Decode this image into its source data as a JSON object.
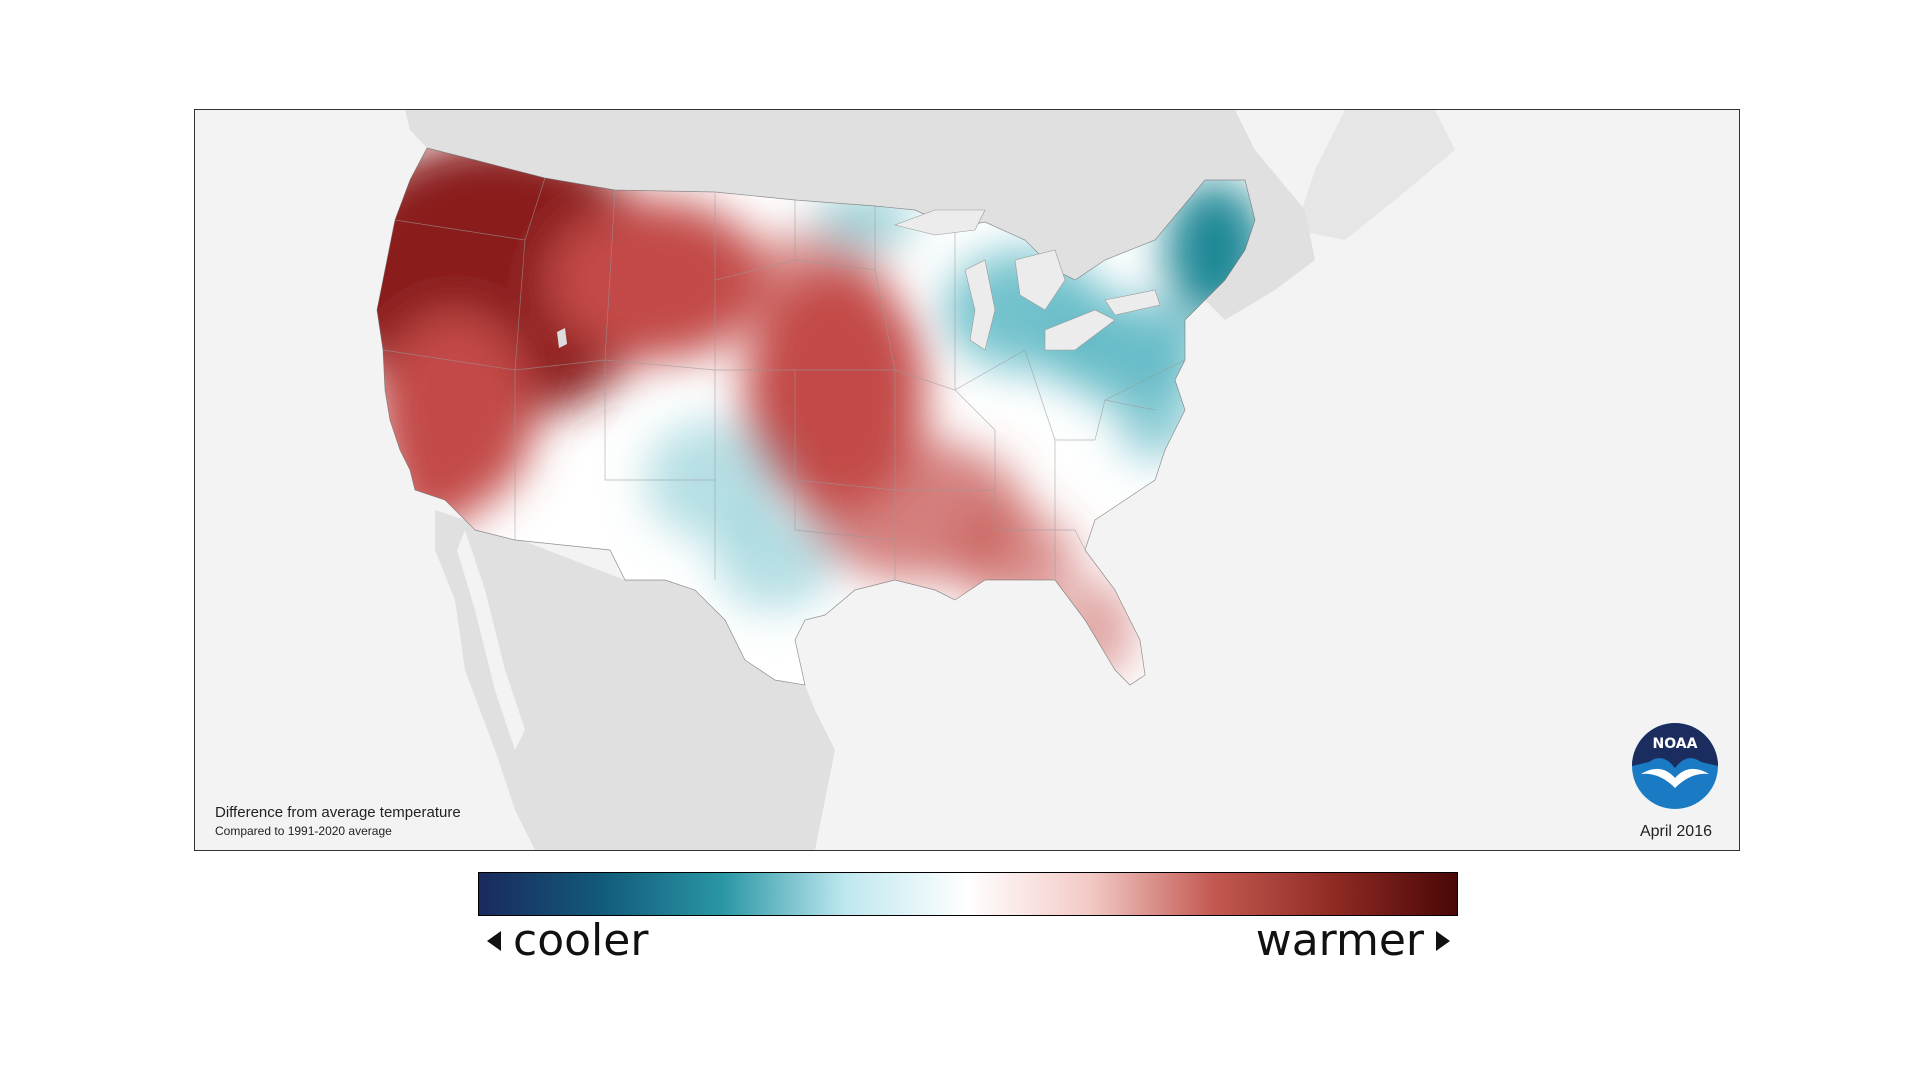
{
  "map": {
    "caption_line1": "Difference from average temperature",
    "caption_line2": "Compared to 1991-2020 average",
    "date": "April 2016",
    "logo_text": "NOAA",
    "colors": {
      "land_outside": "#e0e0e0",
      "water": "#f3f3f3",
      "neutral": "#ffffff",
      "warm": "#c24a46",
      "warm_dark": "#8a1e1e",
      "cool": "#5bb7c3",
      "cool_dark": "#1b8795"
    }
  },
  "legend": {
    "cooler_label": "cooler",
    "warmer_label": "warmer",
    "gradient": [
      "#1a2a5e",
      "#125a7a",
      "#2a97a5",
      "#bfe8ef",
      "#ffffff",
      "#f3c9c6",
      "#c35a52",
      "#8f2a23",
      "#4a0707"
    ]
  }
}
